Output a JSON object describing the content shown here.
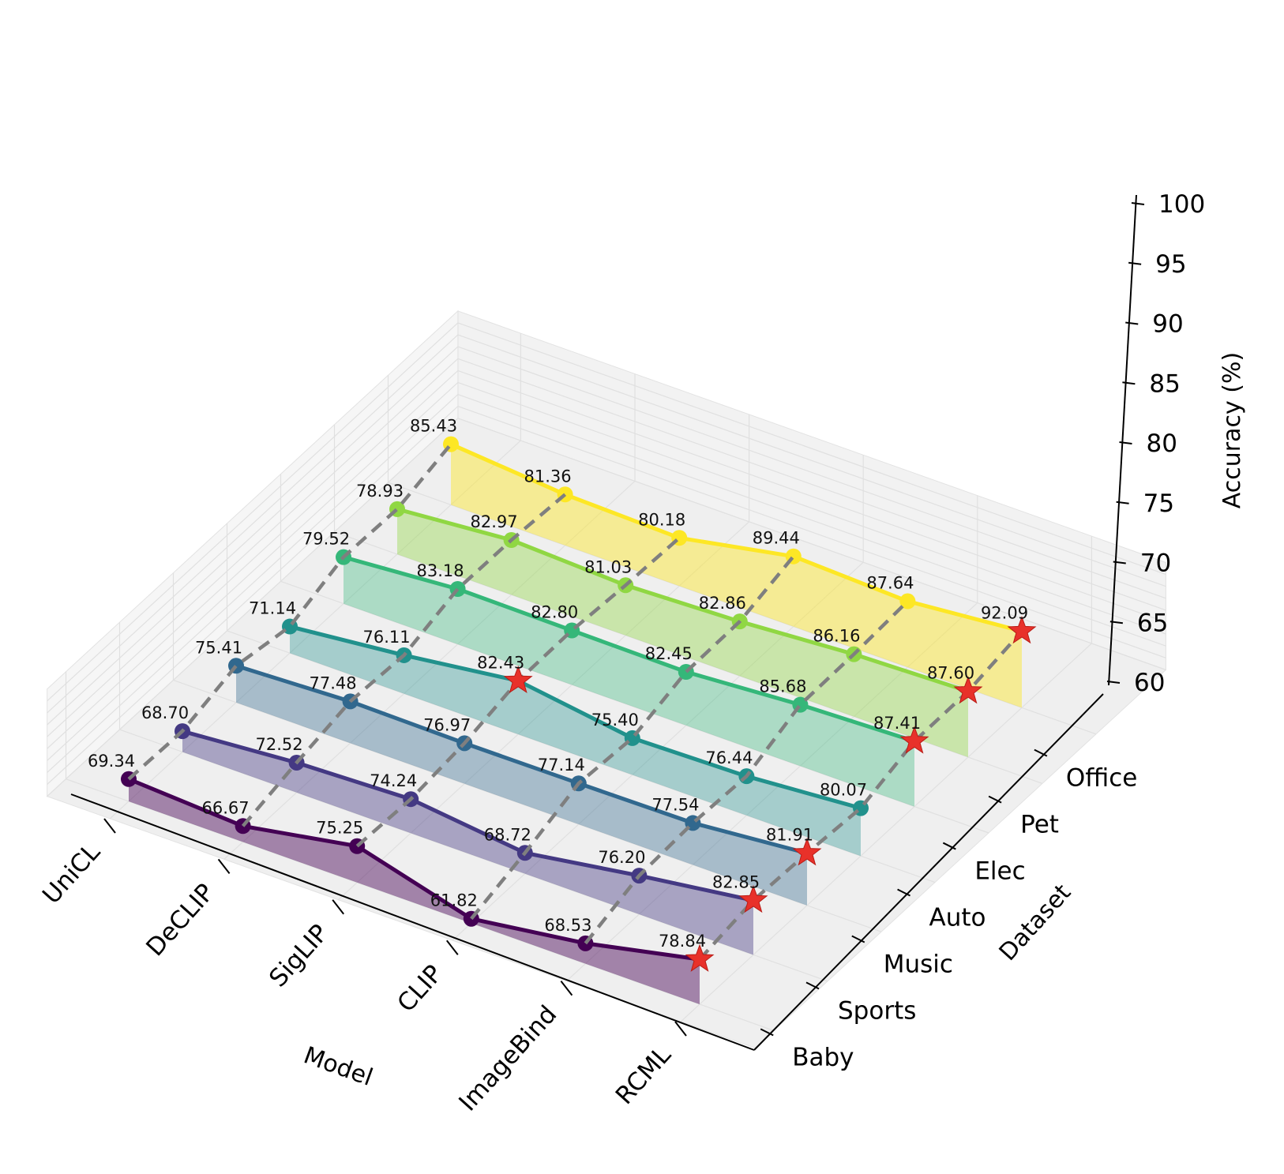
{
  "chart_data": {
    "type": "line-3d",
    "title": "",
    "xlabel": "Model",
    "ylabel": "Dataset",
    "zlabel": "Accuracy (%)",
    "zlim": [
      60,
      100
    ],
    "z_ticks": [
      "60",
      "65",
      "70",
      "75",
      "80",
      "85",
      "90",
      "95",
      "100"
    ],
    "categories": [
      "UniCL",
      "DeCLIP",
      "SigLIP",
      "CLIP",
      "ImageBind",
      "RCML"
    ],
    "datasets": [
      "Baby",
      "Sports",
      "Music",
      "Auto",
      "Elec",
      "Pet",
      "Office"
    ],
    "colors": [
      "#440154",
      "#443983",
      "#31688e",
      "#21918c",
      "#35b779",
      "#90d743",
      "#fde725"
    ],
    "best_marker_color": "#e8312a",
    "series": [
      {
        "name": "Baby",
        "values": [
          69.34,
          66.67,
          75.25,
          61.82,
          68.53,
          78.84
        ],
        "labels": [
          "69.34",
          "66.67",
          "75.25",
          "61.82",
          "68.53",
          "78.84"
        ]
      },
      {
        "name": "Sports",
        "values": [
          68.7,
          72.52,
          74.24,
          68.72,
          76.2,
          82.85
        ],
        "labels": [
          "68.70",
          "72.52",
          "74.24",
          "68.72",
          "76.20",
          "82.85"
        ]
      },
      {
        "name": "Music",
        "values": [
          75.41,
          77.48,
          76.97,
          77.14,
          77.54,
          81.91
        ],
        "labels": [
          "75.41",
          "77.48",
          "76.97",
          "77.14",
          "77.54",
          "81.91"
        ]
      },
      {
        "name": "Auto",
        "values": [
          71.14,
          76.11,
          82.43,
          75.4,
          76.44,
          80.07
        ],
        "labels": [
          "71.14",
          "76.11",
          "82.43",
          "75.40",
          "76.44",
          "80.07"
        ]
      },
      {
        "name": "Elec",
        "values": [
          79.52,
          83.18,
          82.8,
          82.45,
          85.68,
          87.41
        ],
        "labels": [
          "79.52",
          "83.18",
          "82.80",
          "82.45",
          "85.68",
          "87.41"
        ]
      },
      {
        "name": "Pet",
        "values": [
          78.93,
          82.97,
          81.03,
          82.86,
          86.16,
          87.6
        ],
        "labels": [
          "78.93",
          "82.97",
          "81.03",
          "82.86",
          "86.16",
          "87.60"
        ]
      },
      {
        "name": "Office",
        "values": [
          85.43,
          81.36,
          80.18,
          89.44,
          87.64,
          92.09
        ],
        "labels": [
          "85.43",
          "81.36",
          "80.18",
          "89.44",
          "87.64",
          "92.09"
        ]
      }
    ]
  }
}
